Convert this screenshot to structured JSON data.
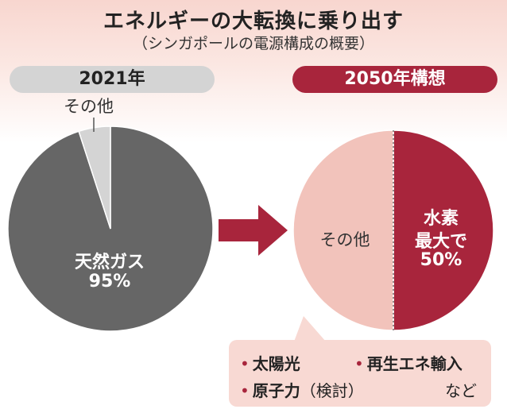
{
  "header": {
    "title": "エネルギーの大転換に乗り出す",
    "subtitle": "（シンガポールの電源構成の概要）"
  },
  "colors": {
    "gas": "#666666",
    "other_2021": "#d4d4d4",
    "other_2050": "#f2c3bb",
    "hydrogen": "#a8253c",
    "arrow": "#a8253c"
  },
  "chart_data": [
    {
      "type": "pie",
      "title": "2021年",
      "slices": [
        {
          "label": "天然ガス",
          "value": 95,
          "value_text": "95%"
        },
        {
          "label": "その他",
          "value": 5
        }
      ]
    },
    {
      "type": "pie",
      "title": "2050年構想",
      "slices": [
        {
          "label": "水素",
          "label2": "最大で",
          "value": 50,
          "value_text": "50%"
        },
        {
          "label": "その他",
          "value": 50
        }
      ]
    }
  ],
  "notes": {
    "items": [
      {
        "bullet": "•",
        "text": "太陽光"
      },
      {
        "bullet": "•",
        "text": "再生エネ輸入"
      },
      {
        "bullet": "•",
        "text": "原子力",
        "suffix": "（検討）"
      }
    ],
    "etc": "など"
  }
}
